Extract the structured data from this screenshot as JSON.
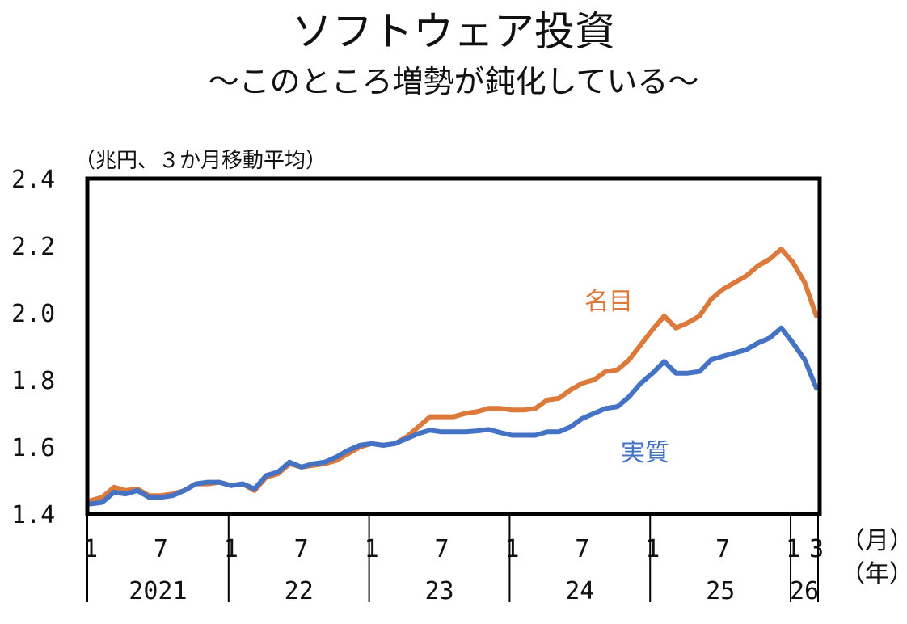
{
  "title": "ソフトウェア投資",
  "subtitle": "～このところ増勢が鈍化している～",
  "chart_data": {
    "type": "line",
    "ylabel": "（兆円、３か月移動平均）",
    "ylim": [
      1.4,
      2.4
    ],
    "yticks": [
      "2.4",
      "2.2",
      "2.0",
      "1.8",
      "1.6",
      "1.4"
    ],
    "ytick_values": [
      2.4,
      2.2,
      2.0,
      1.8,
      1.6,
      1.4
    ],
    "x_start": "2021-01",
    "x_end": "2026-03",
    "month_ticks": [
      {
        "label": "1",
        "month": "2021-01"
      },
      {
        "label": "7",
        "month": "2021-07"
      },
      {
        "label": "1",
        "month": "2022-01"
      },
      {
        "label": "7",
        "month": "2022-07"
      },
      {
        "label": "1",
        "month": "2023-01"
      },
      {
        "label": "7",
        "month": "2023-07"
      },
      {
        "label": "1",
        "month": "2024-01"
      },
      {
        "label": "7",
        "month": "2024-07"
      },
      {
        "label": "1",
        "month": "2025-01"
      },
      {
        "label": "7",
        "month": "2025-07"
      },
      {
        "label": "1",
        "month": "2026-01"
      },
      {
        "label": "3",
        "month": "2026-03"
      }
    ],
    "year_labels": [
      "2021",
      "22",
      "23",
      "24",
      "25",
      "26"
    ],
    "month_unit": "（月）",
    "year_unit": "（年）",
    "series": [
      {
        "name": "名目",
        "color": "#DC7A3C",
        "values": [
          1.44,
          1.45,
          1.48,
          1.47,
          1.475,
          1.455,
          1.455,
          1.46,
          1.47,
          1.49,
          1.49,
          1.495,
          1.485,
          1.49,
          1.47,
          1.51,
          1.52,
          1.55,
          1.54,
          1.545,
          1.55,
          1.56,
          1.58,
          1.6,
          1.61,
          1.605,
          1.61,
          1.63,
          1.66,
          1.69,
          1.69,
          1.69,
          1.7,
          1.705,
          1.715,
          1.715,
          1.71,
          1.71,
          1.715,
          1.74,
          1.745,
          1.77,
          1.79,
          1.8,
          1.825,
          1.83,
          1.86,
          1.905,
          1.95,
          1.99,
          1.955,
          1.97,
          1.99,
          2.04,
          2.07,
          2.09,
          2.11,
          2.14,
          2.16,
          2.19,
          2.15,
          2.09,
          1.99
        ]
      },
      {
        "name": "実質",
        "color": "#4472C4",
        "values": [
          1.43,
          1.435,
          1.465,
          1.46,
          1.47,
          1.45,
          1.45,
          1.455,
          1.47,
          1.49,
          1.495,
          1.495,
          1.485,
          1.49,
          1.475,
          1.515,
          1.525,
          1.555,
          1.54,
          1.55,
          1.555,
          1.57,
          1.59,
          1.605,
          1.61,
          1.605,
          1.61,
          1.625,
          1.64,
          1.65,
          1.645,
          1.645,
          1.645,
          1.648,
          1.652,
          1.643,
          1.635,
          1.635,
          1.635,
          1.645,
          1.645,
          1.66,
          1.685,
          1.7,
          1.715,
          1.72,
          1.75,
          1.79,
          1.82,
          1.855,
          1.82,
          1.82,
          1.825,
          1.86,
          1.87,
          1.88,
          1.89,
          1.91,
          1.925,
          1.955,
          1.91,
          1.86,
          1.775
        ]
      }
    ]
  }
}
